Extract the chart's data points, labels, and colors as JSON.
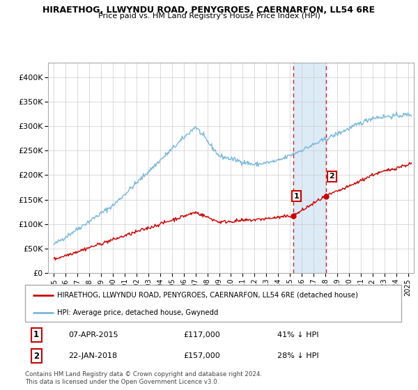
{
  "title": "HIRAETHOG, LLWYNDU ROAD, PENYGROES, CAERNARFON, LL54 6RE",
  "subtitle": "Price paid vs. HM Land Registry's House Price Index (HPI)",
  "yticks": [
    0,
    50000,
    100000,
    150000,
    200000,
    250000,
    300000,
    350000,
    400000
  ],
  "ytick_labels": [
    "£0",
    "£50K",
    "£100K",
    "£150K",
    "£200K",
    "£250K",
    "£300K",
    "£350K",
    "£400K"
  ],
  "xlim_start": 1994.5,
  "xlim_end": 2025.5,
  "ylim": [
    0,
    430000
  ],
  "hpi_color": "#7ab8d9",
  "price_color": "#cc0000",
  "marker1_year": 2015.27,
  "marker2_year": 2018.06,
  "marker1_price": 117000,
  "marker2_price": 157000,
  "annotation1_date": "07-APR-2015",
  "annotation1_price": "£117,000",
  "annotation1_pct": "41% ↓ HPI",
  "annotation2_date": "22-JAN-2018",
  "annotation2_price": "£157,000",
  "annotation2_pct": "28% ↓ HPI",
  "legend_line1": "HIRAETHOG, LLWYNDU ROAD, PENYGROES, CAERNARFON, LL54 6RE (detached house)",
  "legend_line2": "HPI: Average price, detached house, Gwynedd",
  "footer": "Contains HM Land Registry data © Crown copyright and database right 2024.\nThis data is licensed under the Open Government Licence v3.0.",
  "bg_highlight_color": "#d6e8f5",
  "vline_color": "#dd2222"
}
